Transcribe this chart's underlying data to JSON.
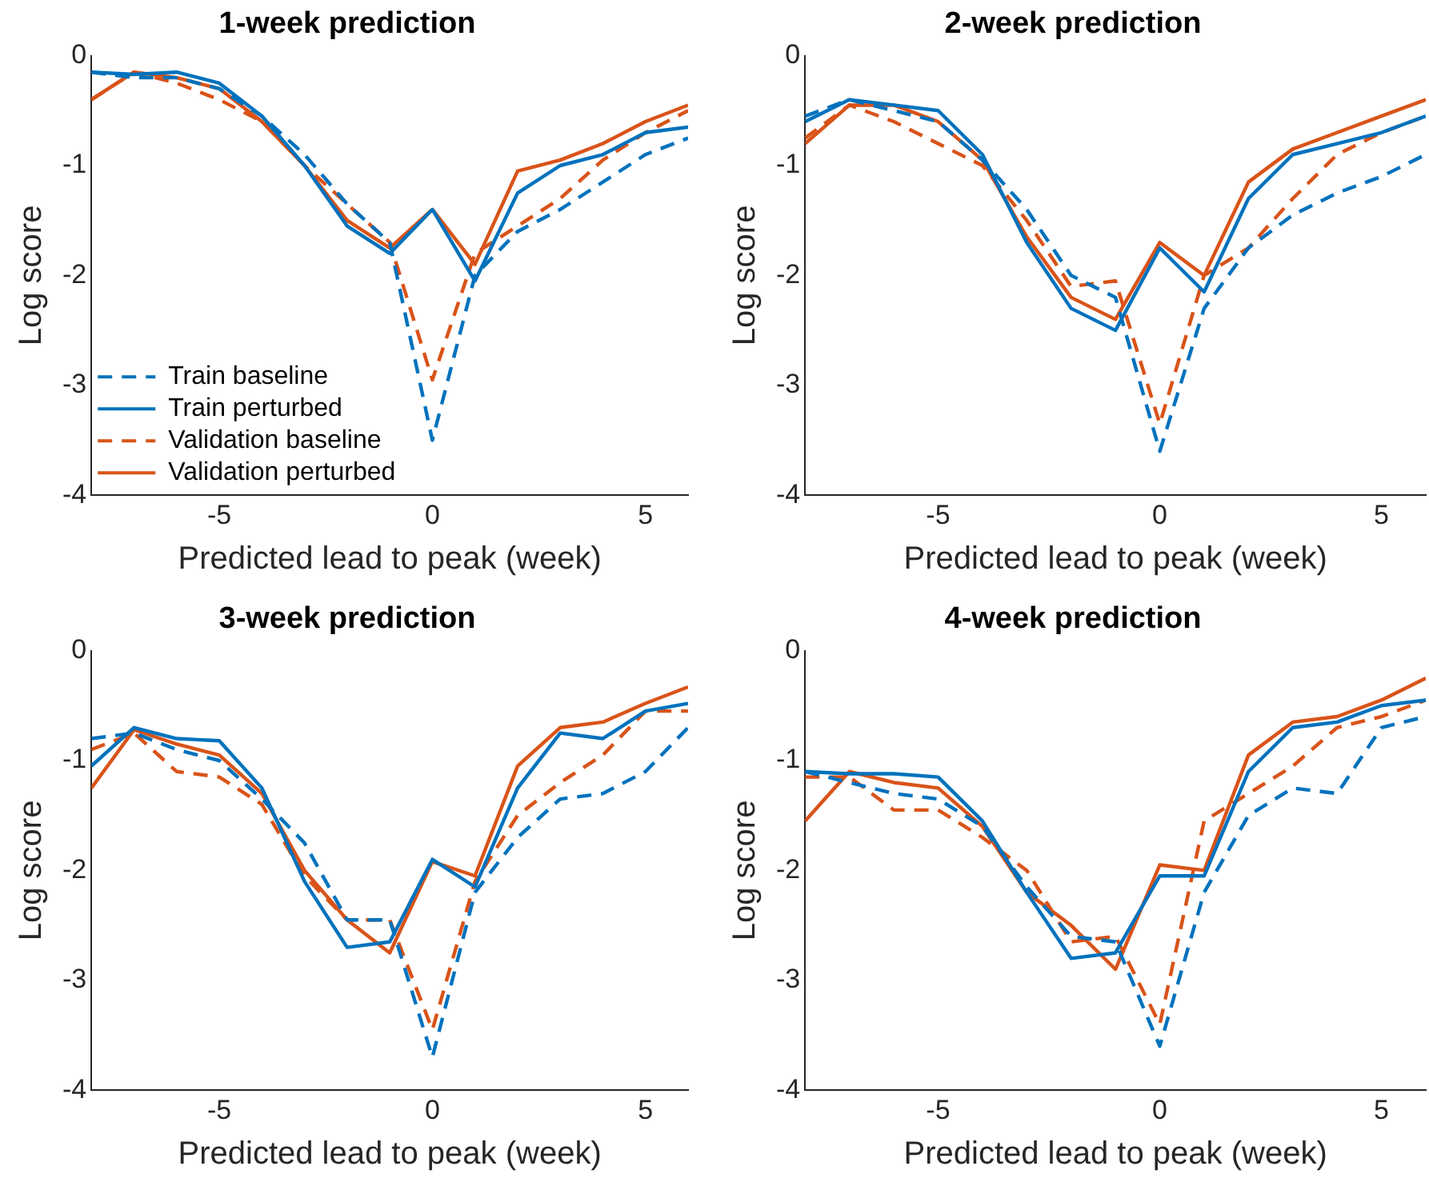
{
  "chart_data": [
    {
      "type": "line",
      "title": "1-week prediction",
      "xlabel": "Predicted lead to peak (week)",
      "ylabel": "Log score",
      "x": [
        -8,
        -7,
        -6,
        -5,
        -4,
        -3,
        -2,
        -1,
        0,
        1,
        2,
        3,
        4,
        5,
        6
      ],
      "xlim": [
        -8,
        6
      ],
      "xticks": [
        -5,
        0,
        5
      ],
      "ylim": [
        -4,
        0
      ],
      "yticks": [
        -4,
        -3,
        -2,
        -1,
        0
      ],
      "grid": false,
      "legend": "bottom left",
      "marker": "none",
      "series": [
        {
          "name": "Train baseline",
          "color": "#0072bd",
          "line_style": "dashed",
          "values": [
            -0.15,
            -0.2,
            -0.2,
            -0.3,
            -0.55,
            -0.9,
            -1.35,
            -1.7,
            -3.5,
            -2.0,
            -1.6,
            -1.4,
            -1.15,
            -0.9,
            -0.75
          ]
        },
        {
          "name": "Train perturbed",
          "color": "#0072bd",
          "line_style": "solid",
          "values": [
            -0.15,
            -0.17,
            -0.15,
            -0.25,
            -0.55,
            -1.0,
            -1.55,
            -1.8,
            -1.4,
            -2.05,
            -1.25,
            -1.0,
            -0.9,
            -0.7,
            -0.65
          ]
        },
        {
          "name": "Validation baseline",
          "color": "#d95319",
          "line_style": "dashed",
          "values": [
            -0.4,
            -0.15,
            -0.25,
            -0.4,
            -0.6,
            -1.0,
            -1.35,
            -1.7,
            -2.95,
            -1.8,
            -1.55,
            -1.3,
            -0.95,
            -0.7,
            -0.5
          ]
        },
        {
          "name": "Validation perturbed",
          "color": "#d95319",
          "line_style": "solid",
          "values": [
            -0.4,
            -0.15,
            -0.2,
            -0.3,
            -0.6,
            -1.0,
            -1.5,
            -1.75,
            -1.4,
            -1.9,
            -1.05,
            -0.95,
            -0.8,
            -0.6,
            -0.45
          ]
        }
      ]
    },
    {
      "type": "line",
      "title": "2-week prediction",
      "xlabel": "Predicted lead to peak (week)",
      "ylabel": "Log score",
      "x": [
        -8,
        -7,
        -6,
        -5,
        -4,
        -3,
        -2,
        -1,
        0,
        1,
        2,
        3,
        4,
        5,
        6
      ],
      "xlim": [
        -8,
        6
      ],
      "xticks": [
        -5,
        0,
        5
      ],
      "ylim": [
        -4,
        0
      ],
      "yticks": [
        -4,
        -3,
        -2,
        -1,
        0
      ],
      "grid": false,
      "legend": false,
      "marker": "none",
      "series": [
        {
          "color": "#0072bd",
          "line_style": "dashed",
          "values": [
            -0.55,
            -0.4,
            -0.5,
            -0.6,
            -0.95,
            -1.4,
            -2.0,
            -2.2,
            -3.6,
            -2.3,
            -1.75,
            -1.45,
            -1.25,
            -1.1,
            -0.9
          ]
        },
        {
          "color": "#0072bd",
          "line_style": "solid",
          "values": [
            -0.6,
            -0.4,
            -0.45,
            -0.5,
            -0.9,
            -1.7,
            -2.3,
            -2.5,
            -1.75,
            -2.15,
            -1.3,
            -0.9,
            -0.8,
            -0.7,
            -0.55
          ]
        },
        {
          "color": "#d95319",
          "line_style": "dashed",
          "values": [
            -0.75,
            -0.45,
            -0.6,
            -0.8,
            -1.0,
            -1.5,
            -2.1,
            -2.05,
            -3.35,
            -2.0,
            -1.75,
            -1.3,
            -0.9,
            -0.7,
            -0.55
          ]
        },
        {
          "color": "#d95319",
          "line_style": "solid",
          "values": [
            -0.8,
            -0.45,
            -0.45,
            -0.6,
            -0.95,
            -1.65,
            -2.2,
            -2.4,
            -1.7,
            -2.0,
            -1.15,
            -0.85,
            -0.7,
            -0.55,
            -0.4
          ]
        }
      ]
    },
    {
      "type": "line",
      "title": "3-week prediction",
      "xlabel": "Predicted lead to peak (week)",
      "ylabel": "Log score",
      "x": [
        -8,
        -7,
        -6,
        -5,
        -4,
        -3,
        -2,
        -1,
        0,
        1,
        2,
        3,
        4,
        5,
        6
      ],
      "xlim": [
        -8,
        6
      ],
      "xticks": [
        -5,
        0,
        5
      ],
      "ylim": [
        -4,
        0
      ],
      "yticks": [
        -4,
        -3,
        -2,
        -1,
        0
      ],
      "grid": false,
      "legend": false,
      "marker": "none",
      "series": [
        {
          "color": "#0072bd",
          "line_style": "dashed",
          "values": [
            -0.8,
            -0.75,
            -0.9,
            -1.0,
            -1.35,
            -1.75,
            -2.45,
            -2.45,
            -3.7,
            -2.2,
            -1.7,
            -1.35,
            -1.3,
            -1.1,
            -0.7
          ]
        },
        {
          "color": "#0072bd",
          "line_style": "solid",
          "values": [
            -1.05,
            -0.7,
            -0.8,
            -0.82,
            -1.25,
            -2.1,
            -2.7,
            -2.65,
            -1.9,
            -2.15,
            -1.25,
            -0.75,
            -0.8,
            -0.55,
            -0.48
          ]
        },
        {
          "color": "#d95319",
          "line_style": "dashed",
          "values": [
            -0.9,
            -0.75,
            -1.1,
            -1.15,
            -1.4,
            -2.05,
            -2.45,
            -2.45,
            -3.45,
            -2.1,
            -1.5,
            -1.2,
            -0.95,
            -0.55,
            -0.55
          ]
        },
        {
          "color": "#d95319",
          "line_style": "solid",
          "values": [
            -1.25,
            -0.72,
            -0.85,
            -0.95,
            -1.3,
            -2.0,
            -2.45,
            -2.75,
            -1.92,
            -2.05,
            -1.05,
            -0.7,
            -0.65,
            -0.48,
            -0.33
          ]
        }
      ]
    },
    {
      "type": "line",
      "title": "4-week prediction",
      "xlabel": "Predicted lead to peak (week)",
      "ylabel": "Log score",
      "x": [
        -8,
        -7,
        -6,
        -5,
        -4,
        -3,
        -2,
        -1,
        0,
        1,
        2,
        3,
        4,
        5,
        6
      ],
      "xlim": [
        -8,
        6
      ],
      "xticks": [
        -5,
        0,
        5
      ],
      "ylim": [
        -4,
        0
      ],
      "yticks": [
        -4,
        -3,
        -2,
        -1,
        0
      ],
      "grid": false,
      "legend": false,
      "marker": "none",
      "series": [
        {
          "color": "#0072bd",
          "line_style": "dashed",
          "values": [
            -1.1,
            -1.2,
            -1.3,
            -1.35,
            -1.6,
            -2.15,
            -2.6,
            -2.65,
            -3.6,
            -2.2,
            -1.5,
            -1.25,
            -1.3,
            -0.7,
            -0.6
          ]
        },
        {
          "color": "#0072bd",
          "line_style": "solid",
          "values": [
            -1.1,
            -1.12,
            -1.12,
            -1.15,
            -1.55,
            -2.2,
            -2.8,
            -2.75,
            -2.05,
            -2.05,
            -1.1,
            -0.7,
            -0.65,
            -0.5,
            -0.45
          ]
        },
        {
          "color": "#d95319",
          "line_style": "dashed",
          "values": [
            -1.15,
            -1.15,
            -1.45,
            -1.45,
            -1.7,
            -2.0,
            -2.65,
            -2.6,
            -3.4,
            -1.55,
            -1.3,
            -1.05,
            -0.7,
            -0.6,
            -0.45
          ]
        },
        {
          "color": "#d95319",
          "line_style": "solid",
          "values": [
            -1.55,
            -1.1,
            -1.2,
            -1.25,
            -1.6,
            -2.2,
            -2.5,
            -2.9,
            -1.95,
            -2.0,
            -0.95,
            -0.65,
            -0.6,
            -0.45,
            -0.25
          ]
        }
      ]
    }
  ]
}
